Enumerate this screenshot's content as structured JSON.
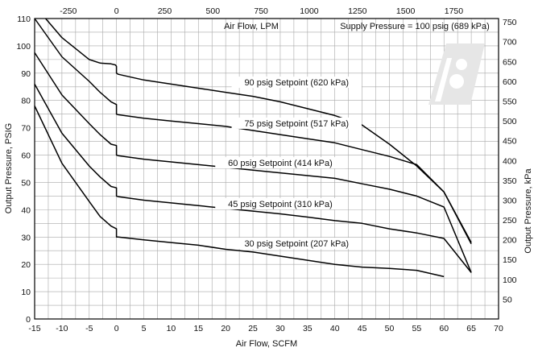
{
  "chart_data": {
    "type": "line",
    "title": "",
    "xlabel": "Air Flow, SCFM",
    "ylabel": "Output Pressure, PSIG",
    "xlabel_top": "Air Flow, LPM",
    "ylabel_right": "Output Pressure, kPa",
    "annotation": "Supply Pressure = 100 psig (689 kPa)",
    "xlim": [
      -15,
      70
    ],
    "ylim": [
      0,
      110
    ],
    "grid": true,
    "x_ticks": [
      "-15",
      "-10",
      "-5",
      "0",
      "5",
      "10",
      "15",
      "20",
      "25",
      "30",
      "35",
      "40",
      "45",
      "50",
      "55",
      "60",
      "65",
      "70"
    ],
    "y_ticks": [
      "0",
      "10",
      "20",
      "30",
      "40",
      "50",
      "60",
      "70",
      "80",
      "90",
      "100",
      "110"
    ],
    "top_ticks": [
      "-250",
      "0",
      "250",
      "500",
      "750",
      "1000",
      "1250",
      "1500",
      "1750"
    ],
    "right_ticks": [
      "50",
      "100",
      "150",
      "200",
      "250",
      "300",
      "350",
      "400",
      "450",
      "500",
      "550",
      "600",
      "650",
      "700",
      "750"
    ],
    "series": [
      {
        "name": "90 psig Setpoint (620 kPa)",
        "points": [
          [
            -13,
            110
          ],
          [
            -10,
            103
          ],
          [
            -5,
            95
          ],
          [
            -3,
            93.7
          ],
          [
            -1,
            93.4
          ],
          [
            -0.2,
            93
          ],
          [
            0,
            92.5
          ],
          [
            0,
            90
          ],
          [
            0.3,
            89.6
          ],
          [
            5,
            87.5
          ],
          [
            10,
            86
          ],
          [
            15,
            84.5
          ],
          [
            20,
            83
          ],
          [
            25,
            81.5
          ],
          [
            30,
            79.5
          ],
          [
            35,
            77
          ],
          [
            40,
            74.5
          ],
          [
            45,
            71
          ],
          [
            50,
            64
          ],
          [
            55,
            56
          ],
          [
            60,
            46.5
          ],
          [
            65,
            28
          ]
        ]
      },
      {
        "name": "75 psig Setpoint (517 kPa)",
        "points": [
          [
            -15,
            110
          ],
          [
            -10,
            96
          ],
          [
            -5,
            87
          ],
          [
            -3,
            83
          ],
          [
            -1,
            79.5
          ],
          [
            0,
            78.5
          ],
          [
            0,
            75
          ],
          [
            0.3,
            74.8
          ],
          [
            5,
            73.5
          ],
          [
            10,
            72.5
          ],
          [
            15,
            71.5
          ],
          [
            20,
            70.5
          ],
          [
            25,
            69
          ],
          [
            30,
            67.5
          ],
          [
            35,
            66
          ],
          [
            40,
            64.5
          ],
          [
            45,
            62
          ],
          [
            50,
            59.5
          ],
          [
            55,
            56.5
          ],
          [
            60,
            46.5
          ],
          [
            65,
            27.5
          ]
        ]
      },
      {
        "name": "60 psig Setpoint (414 kPa)",
        "points": [
          [
            -15,
            97.5
          ],
          [
            -10,
            82
          ],
          [
            -5,
            71.5
          ],
          [
            -3,
            67.5
          ],
          [
            -1,
            64
          ],
          [
            0,
            63.5
          ],
          [
            0,
            60
          ],
          [
            0.3,
            59.8
          ],
          [
            5,
            58.5
          ],
          [
            10,
            57.5
          ],
          [
            15,
            56.5
          ],
          [
            20,
            55.5
          ],
          [
            25,
            54.5
          ],
          [
            30,
            53.5
          ],
          [
            35,
            52.5
          ],
          [
            40,
            51.5
          ],
          [
            45,
            49.5
          ],
          [
            50,
            47.5
          ],
          [
            55,
            45
          ],
          [
            60,
            41
          ],
          [
            65,
            17
          ]
        ]
      },
      {
        "name": "45 psig Setpoint (310 kPa)",
        "points": [
          [
            -15,
            86
          ],
          [
            -10,
            68
          ],
          [
            -5,
            56
          ],
          [
            -3,
            52
          ],
          [
            -1,
            48.5
          ],
          [
            0,
            48
          ],
          [
            0,
            45
          ],
          [
            0.3,
            44.8
          ],
          [
            5,
            43.5
          ],
          [
            10,
            42.5
          ],
          [
            15,
            41.5
          ],
          [
            20,
            40.5
          ],
          [
            25,
            39.5
          ],
          [
            30,
            38.5
          ],
          [
            35,
            37.3
          ],
          [
            40,
            36
          ],
          [
            45,
            35
          ],
          [
            50,
            33
          ],
          [
            55,
            31.5
          ],
          [
            60,
            29.5
          ],
          [
            65,
            17
          ]
        ]
      },
      {
        "name": "30 psig Setpoint (207 kPa)",
        "points": [
          [
            -15,
            78
          ],
          [
            -10,
            57
          ],
          [
            -5,
            43
          ],
          [
            -3,
            37.5
          ],
          [
            -1,
            34
          ],
          [
            0,
            33
          ],
          [
            0,
            30
          ],
          [
            0.3,
            30
          ],
          [
            5,
            29
          ],
          [
            10,
            28
          ],
          [
            15,
            27
          ],
          [
            20,
            25.5
          ],
          [
            25,
            24.5
          ],
          [
            30,
            23
          ],
          [
            35,
            21.5
          ],
          [
            40,
            20
          ],
          [
            45,
            19
          ],
          [
            50,
            18.5
          ],
          [
            55,
            17.8
          ],
          [
            60,
            15.5
          ]
        ]
      }
    ]
  }
}
